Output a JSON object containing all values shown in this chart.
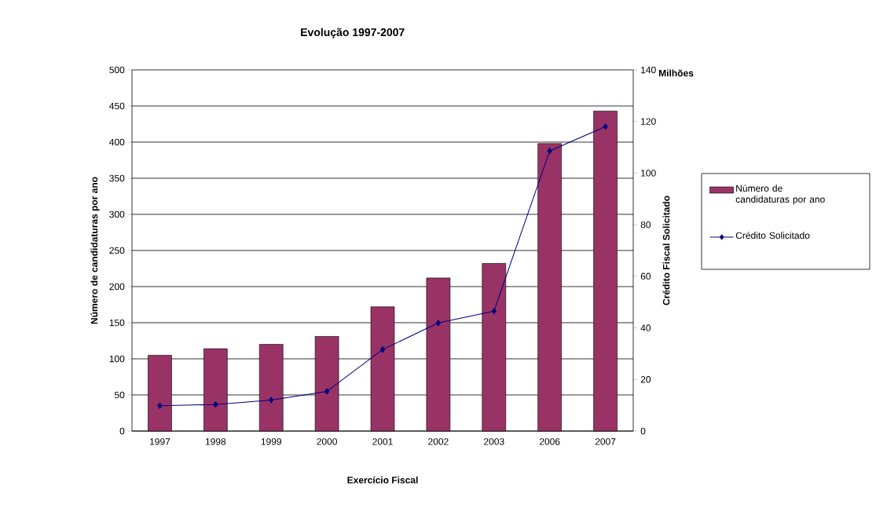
{
  "chart_data": {
    "type": "bar",
    "title": "Evolução 1997-2007",
    "xlabel": "Exercício Fiscal",
    "ylabel": "Número de candidaturas por ano",
    "y2label": "Crédito Fiscal Solicitado",
    "categories": [
      "1997",
      "1998",
      "1999",
      "2000",
      "2001",
      "2002",
      "2003",
      "2006",
      "2007"
    ],
    "series": [
      {
        "name": "Número de candidaturas por ano",
        "color": "#993366",
        "values": [
          105,
          114,
          120,
          131,
          172,
          212,
          232,
          398,
          443
        ]
      },
      {
        "name": "Crédito Solicitado",
        "type": "line",
        "axis": "y2",
        "color": "#000080",
        "values": [
          9.8,
          10.3,
          12.0,
          15.4,
          31.6,
          41.9,
          46.5,
          108.6,
          118.0
        ]
      }
    ],
    "ylim": [
      0,
      500
    ],
    "yticks": [
      0,
      50,
      100,
      150,
      200,
      250,
      300,
      350,
      400,
      450,
      500
    ],
    "y2lim": [
      0,
      140
    ],
    "y2ticks": [
      0,
      20,
      40,
      60,
      80,
      100,
      120,
      140
    ],
    "grid": "y",
    "legend": "right",
    "marker": "diamond",
    "line_style": "solid",
    "annotations": [
      "Milhões"
    ]
  }
}
